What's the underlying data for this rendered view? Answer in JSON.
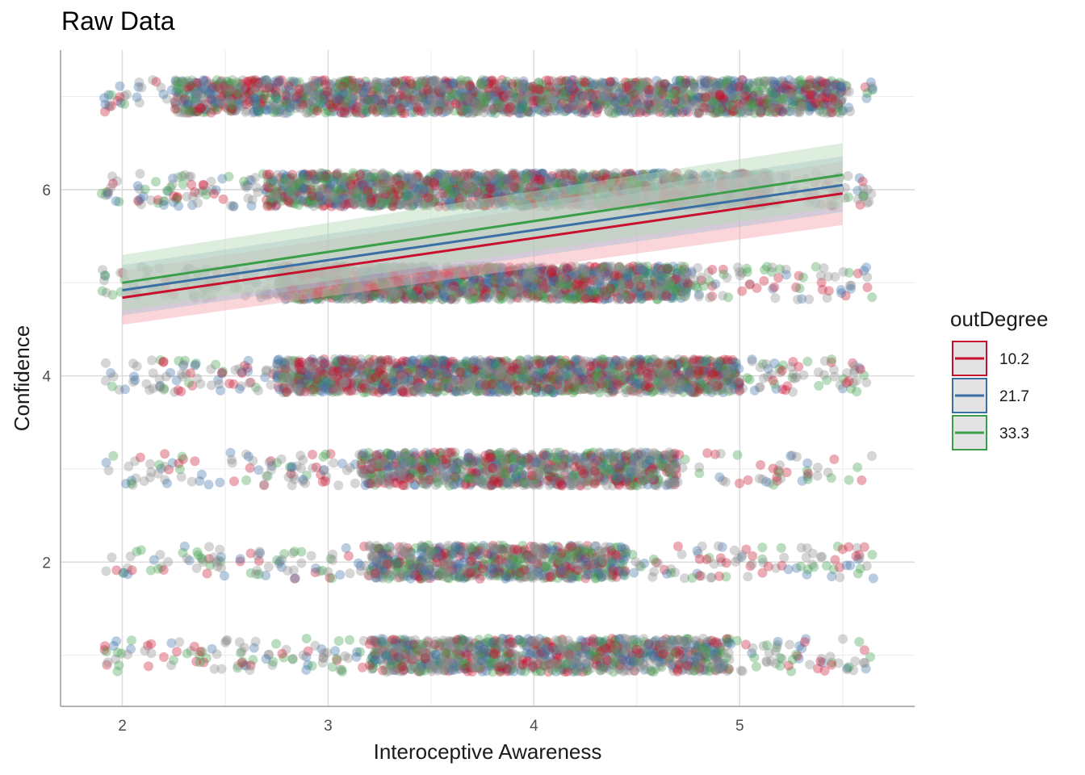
{
  "chart_data": {
    "type": "scatter",
    "title": "Raw Data",
    "xlabel": "Interoceptive Awareness",
    "ylabel": "Confidence",
    "xlim": [
      1.7,
      5.85
    ],
    "ylim": [
      0.45,
      7.5
    ],
    "x_ticks": [
      2,
      3,
      4,
      5
    ],
    "y_ticks": [
      2,
      4,
      6
    ],
    "x_tick_labels": [
      "2",
      "3",
      "4",
      "5"
    ],
    "y_tick_labels": [
      "2",
      "4",
      "6"
    ],
    "grid": true,
    "jitter": {
      "x_range": [
        1.9,
        5.65
      ],
      "y_spread": 0.18,
      "point_alpha": 0.35
    },
    "confidence_levels": [
      {
        "level": 1,
        "dense_x": [
          3.2,
          4.95
        ],
        "sparse_count": 320,
        "dense_count": 900
      },
      {
        "level": 2,
        "dense_x": [
          3.2,
          4.45
        ],
        "sparse_count": 260,
        "dense_count": 700
      },
      {
        "level": 3,
        "dense_x": [
          3.15,
          4.7
        ],
        "sparse_count": 220,
        "dense_count": 900
      },
      {
        "level": 4,
        "dense_x": [
          2.75,
          5.0
        ],
        "sparse_count": 380,
        "dense_count": 1600
      },
      {
        "level": 5,
        "dense_x": [
          2.75,
          4.75
        ],
        "sparse_count": 340,
        "dense_count": 1500
      },
      {
        "level": 6,
        "dense_x": [
          2.7,
          5.15
        ],
        "sparse_count": 380,
        "dense_count": 1700
      },
      {
        "level": 7,
        "dense_x": [
          2.25,
          5.5
        ],
        "sparse_count": 300,
        "dense_count": 2000
      }
    ],
    "point_colors": [
      "#c8102e",
      "#3a6ea5",
      "#3b9e49",
      "#8a8a8a",
      "#8a8a8a"
    ],
    "legend": {
      "title": "outDegree",
      "position": "right"
    },
    "series": [
      {
        "name": "10.2",
        "color": "#c8102e",
        "band_color": "#f4a4ad",
        "line": {
          "x": [
            2,
            5.5
          ],
          "y": [
            4.84,
            5.96
          ]
        },
        "band_lower": [
          4.55,
          5.62
        ],
        "band_upper": [
          5.13,
          6.3
        ]
      },
      {
        "name": "21.7",
        "color": "#3a6ea5",
        "band_color": "#a9bcd3",
        "line": {
          "x": [
            2,
            5.5
          ],
          "y": [
            4.92,
            6.05
          ]
        },
        "band_lower": [
          4.65,
          5.76
        ],
        "band_upper": [
          5.19,
          6.36
        ]
      },
      {
        "name": "33.3",
        "color": "#3b9e49",
        "band_color": "#b4d9b5",
        "line": {
          "x": [
            2,
            5.5
          ],
          "y": [
            5.0,
            6.16
          ]
        },
        "band_lower": [
          4.7,
          5.82
        ],
        "band_upper": [
          5.3,
          6.5
        ]
      }
    ]
  }
}
